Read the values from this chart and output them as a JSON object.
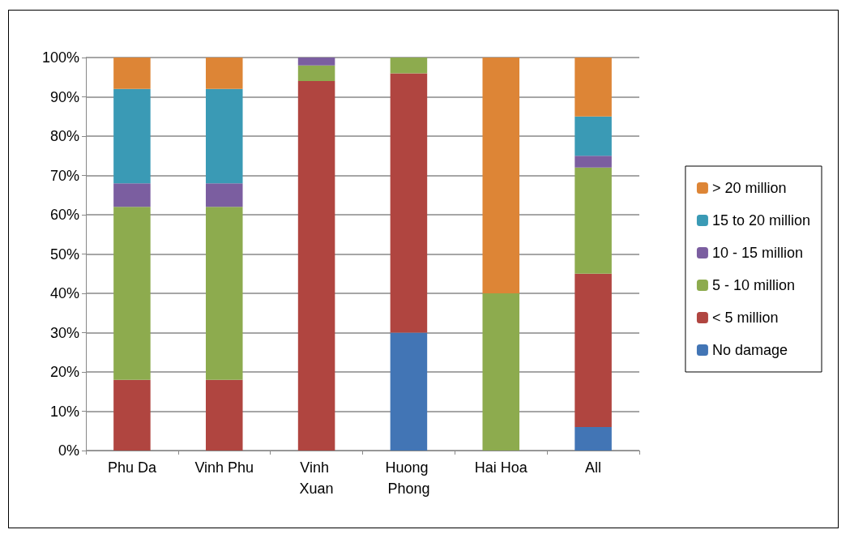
{
  "chart_data": {
    "type": "bar",
    "stacked": true,
    "categories": [
      "Phu Da",
      "Vinh Phu",
      "Vinh Xuan",
      "Huong Phong",
      "Hai Hoa",
      "All"
    ],
    "series": [
      {
        "name": "No damage",
        "color": "#4275b5",
        "values": [
          0,
          0,
          0,
          30,
          0,
          6
        ]
      },
      {
        "name": "< 5 million",
        "color": "#b04540",
        "values": [
          18,
          18,
          94,
          66,
          0,
          39
        ]
      },
      {
        "name": "5 - 10 million",
        "color": "#8dab4e",
        "values": [
          44,
          44,
          4,
          4,
          40,
          27
        ]
      },
      {
        "name": "10 - 15 million",
        "color": "#7b5ea0",
        "values": [
          6,
          6,
          2,
          0,
          0,
          3
        ]
      },
      {
        "name": "15 to 20 million",
        "color": "#3a9ab5",
        "values": [
          24,
          24,
          0,
          0,
          0,
          10
        ]
      },
      {
        "name": "> 20 million",
        "color": "#dd8536",
        "values": [
          8,
          8,
          0,
          0,
          60,
          15
        ]
      }
    ],
    "ylim": [
      0,
      100
    ],
    "yticks": [
      {
        "value": 0,
        "label": "0%"
      },
      {
        "value": 10,
        "label": "10%"
      },
      {
        "value": 20,
        "label": "20%"
      },
      {
        "value": 30,
        "label": "30%"
      },
      {
        "value": 40,
        "label": "40%"
      },
      {
        "value": 50,
        "label": "50%"
      },
      {
        "value": 60,
        "label": "60%"
      },
      {
        "value": 70,
        "label": "70%"
      },
      {
        "value": 80,
        "label": "80%"
      },
      {
        "value": 90,
        "label": "90%"
      },
      {
        "value": 100,
        "label": "100%"
      }
    ],
    "grid": "y",
    "legend": "right"
  }
}
